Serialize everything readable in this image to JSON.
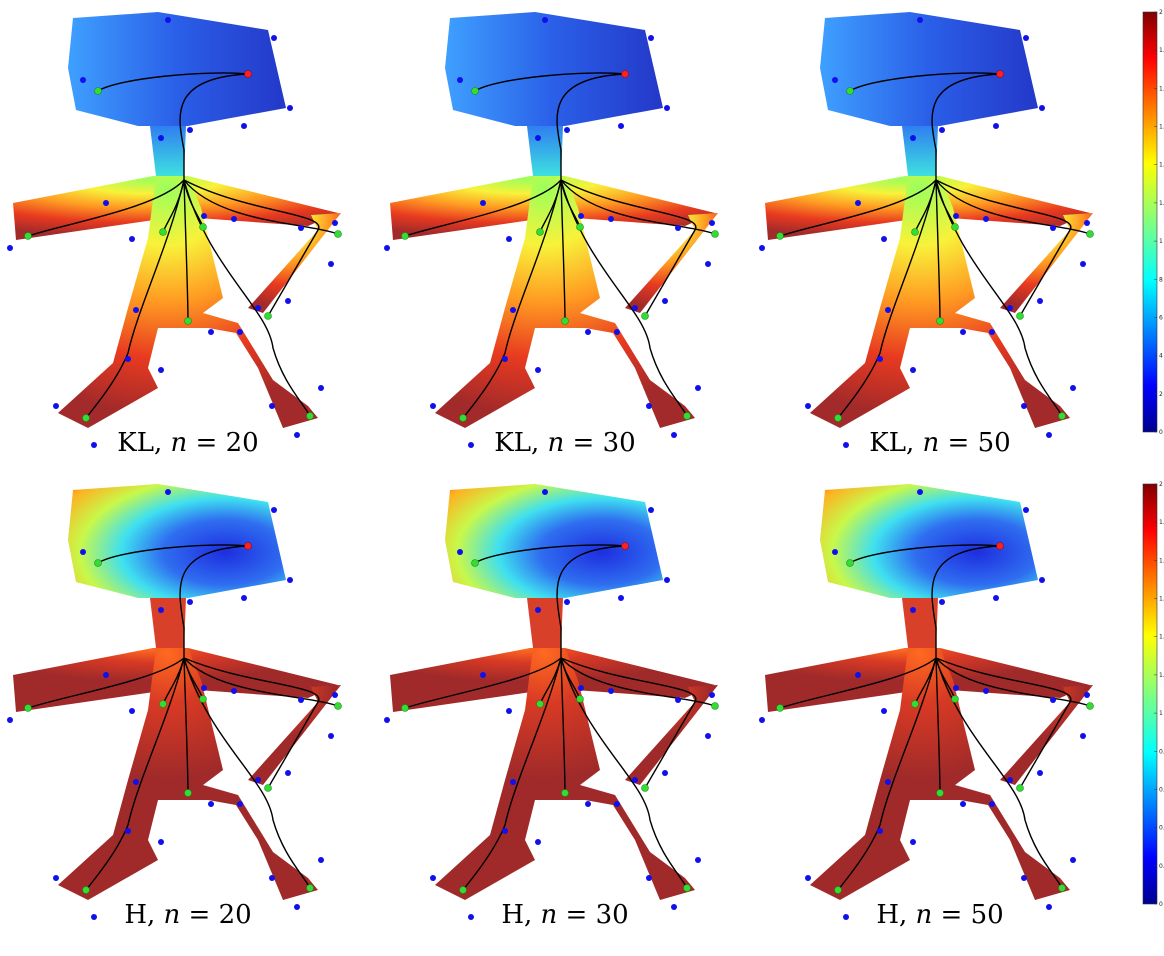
{
  "panels": [
    {
      "id": "kl20",
      "method": "KL",
      "n": "20"
    },
    {
      "id": "kl30",
      "method": "KL",
      "n": "30"
    },
    {
      "id": "kl50",
      "method": "KL",
      "n": "50"
    },
    {
      "id": "h20",
      "method": "H",
      "n": "20"
    },
    {
      "id": "h30",
      "method": "H",
      "n": "30"
    },
    {
      "id": "h50",
      "method": "H",
      "n": "50"
    }
  ],
  "caption_sep": ", ",
  "caption_var": "n",
  "caption_eq": " = ",
  "colorbars": [
    {
      "ticks": [
        "2",
        "1.",
        "1.",
        "1.",
        "1.",
        "1.",
        "1",
        "8",
        "6",
        "4",
        "2",
        "0"
      ]
    },
    {
      "ticks": [
        "2",
        "1.",
        "1.",
        "1.",
        "1.",
        "1.",
        "1",
        "0.",
        "0.",
        "0.",
        "0.",
        "0"
      ]
    }
  ],
  "colors": {
    "low": "#00008f",
    "high": "#800000",
    "source_point": "#ff2020",
    "sink_point": "#33dd33",
    "boundary_point": "#1010ee",
    "path": "#000000",
    "body_dark": "#9e2a2a"
  }
}
